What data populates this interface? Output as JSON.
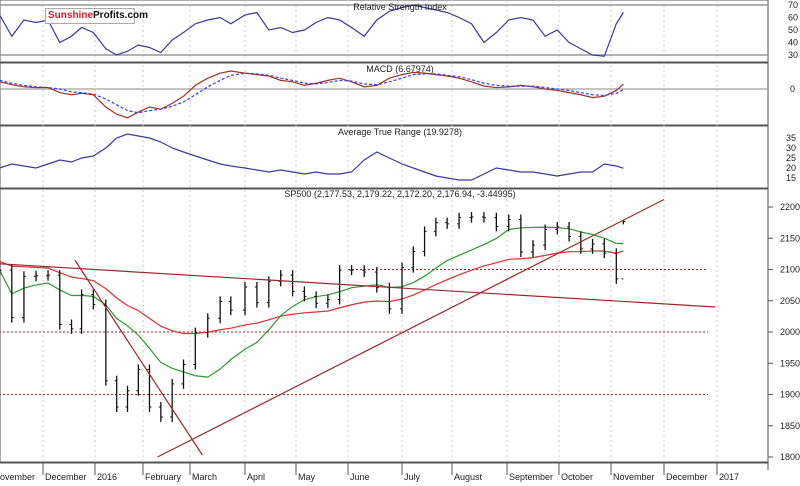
{
  "logo": {
    "part1": "Sunshine",
    "part2": "Profits.com"
  },
  "colors": {
    "rsi": "#3a3aa0",
    "macd": "#a0302a",
    "signal": "#3a3aff",
    "atr": "#3a3aa0",
    "price": "#111111",
    "ma_fast": "#2a9a2a",
    "ma_slow": "#e03030",
    "trend": "#9a2a2a",
    "grid": "#cccccc"
  },
  "chart_data": [
    {
      "type": "line",
      "title": "Relative Strength Index",
      "ylim": [
        30,
        70
      ],
      "yticks": [
        "70",
        "60",
        "50",
        "40",
        "30"
      ],
      "values": [
        62,
        45,
        58,
        56,
        58,
        40,
        45,
        52,
        48,
        35,
        30,
        33,
        38,
        36,
        32,
        42,
        48,
        55,
        58,
        60,
        55,
        62,
        64,
        50,
        52,
        48,
        50,
        56,
        60,
        58,
        52,
        45,
        58,
        65,
        68,
        70,
        68,
        66,
        64,
        60,
        55,
        40,
        48,
        58,
        60,
        58,
        45,
        50,
        40,
        35,
        30,
        29,
        55,
        64
      ]
    },
    {
      "type": "line",
      "title": "MACD (6.67974)",
      "yticks": [
        "0"
      ],
      "series": [
        {
          "values": [
            10,
            6,
            3,
            2,
            2,
            -5,
            -8,
            -6,
            -8,
            -25,
            -35,
            -40,
            -32,
            -25,
            -28,
            -20,
            -10,
            5,
            15,
            22,
            25,
            22,
            20,
            18,
            12,
            10,
            5,
            8,
            12,
            15,
            10,
            3,
            5,
            15,
            20,
            23,
            22,
            20,
            18,
            15,
            10,
            4,
            2,
            3,
            5,
            3,
            0,
            -2,
            -5,
            -8,
            -12,
            -10,
            -2,
            6.68
          ]
        },
        {
          "values": [
            12,
            8,
            5,
            3,
            2,
            0,
            -4,
            -5,
            -7,
            -14,
            -22,
            -30,
            -33,
            -30,
            -28,
            -24,
            -18,
            -8,
            3,
            12,
            19,
            22,
            21,
            19,
            15,
            12,
            8,
            7,
            9,
            12,
            11,
            7,
            6,
            10,
            15,
            20,
            21,
            21,
            19,
            17,
            13,
            8,
            5,
            4,
            4,
            4,
            2,
            0,
            -2,
            -5,
            -8,
            -9,
            -6,
            -1
          ]
        }
      ]
    },
    {
      "type": "line",
      "title": "Average True Range (19.9278)",
      "yticks": [
        "35",
        "30",
        "25",
        "20",
        "15"
      ],
      "values": [
        20,
        22,
        21,
        20,
        22,
        24,
        23,
        25,
        26,
        30,
        35,
        37,
        36,
        35,
        33,
        30,
        28,
        26,
        24,
        22,
        21,
        20,
        19,
        18,
        19,
        18,
        17,
        18,
        17,
        17,
        18,
        24,
        28,
        25,
        22,
        20,
        18,
        16,
        15,
        14,
        14,
        17,
        20,
        19,
        18,
        18,
        17,
        16,
        17,
        18,
        18,
        22,
        21,
        19.93
      ]
    },
    {
      "type": "ohlc",
      "title": "SP500 (2,177.53, 2,179.22, 2,172.20, 2,176.94, -3.44995)",
      "ylim": [
        1780,
        2230
      ],
      "yticks": [
        "2200",
        "2150",
        "2100",
        "2050",
        "2000",
        "1950",
        "1900",
        "1850",
        "1800"
      ],
      "xticks": [
        "ovember",
        "December",
        "2016",
        "February",
        "March",
        "April",
        "May",
        "June",
        "July",
        "August",
        "September",
        "October",
        "November",
        "December",
        "2017"
      ],
      "dates": [
        "2015-11-06",
        "2015-11-13",
        "2015-11-20",
        "2015-11-27",
        "2015-12-04",
        "2015-12-11",
        "2015-12-18",
        "2015-12-24",
        "2015-12-31",
        "2016-01-08",
        "2016-01-15",
        "2016-01-22",
        "2016-01-29",
        "2016-02-05",
        "2016-02-12",
        "2016-02-19",
        "2016-02-26",
        "2016-03-04",
        "2016-03-11",
        "2016-03-18",
        "2016-03-24",
        "2016-04-01",
        "2016-04-08",
        "2016-04-15",
        "2016-04-22",
        "2016-04-29",
        "2016-05-06",
        "2016-05-13",
        "2016-05-20",
        "2016-05-27",
        "2016-06-03",
        "2016-06-10",
        "2016-06-17",
        "2016-06-24",
        "2016-07-01",
        "2016-07-08",
        "2016-07-15",
        "2016-07-22",
        "2016-07-29",
        "2016-08-05",
        "2016-08-12",
        "2016-08-19",
        "2016-08-26",
        "2016-09-02",
        "2016-09-09",
        "2016-09-16",
        "2016-09-23",
        "2016-09-30",
        "2016-10-07",
        "2016-10-14",
        "2016-10-21",
        "2016-10-28",
        "2016-11-04",
        "2016-11-08"
      ],
      "close": [
        2099,
        2023,
        2089,
        2090,
        2091,
        2012,
        2005,
        2060,
        2044,
        1922,
        1880,
        1906,
        1940,
        1880,
        1864,
        1917,
        1948,
        1999,
        2022,
        2049,
        2035,
        2072,
        2047,
        2081,
        2091,
        2065,
        2057,
        2046,
        2052,
        2099,
        2099,
        2096,
        2071,
        2037,
        2103,
        2129,
        2161,
        2175,
        2173,
        2183,
        2184,
        2183,
        2169,
        2180,
        2128,
        2139,
        2164,
        2168,
        2153,
        2133,
        2141,
        2126,
        2085,
        2176.94
      ],
      "last_bar": {
        "open": 2177.53,
        "high": 2179.22,
        "low": 2172.2,
        "close": 2176.94,
        "change": -3.44995
      },
      "trendlines": [
        {
          "from": [
            "2015-11-01",
            2110
          ],
          "to": [
            "2016-12-31",
            2040
          ]
        },
        {
          "from": [
            "2015-12-20",
            2115
          ],
          "to": [
            "2016-03-08",
            1803
          ]
        },
        {
          "from": [
            "2016-02-10",
            1800
          ],
          "to": [
            "2016-12-01",
            2212
          ]
        }
      ],
      "levels": [
        {
          "price": 2100,
          "from": "2016-06-01"
        },
        {
          "price": 2000,
          "from": "2015-11-01"
        },
        {
          "price": 1900,
          "from": "2015-11-01"
        }
      ]
    }
  ]
}
